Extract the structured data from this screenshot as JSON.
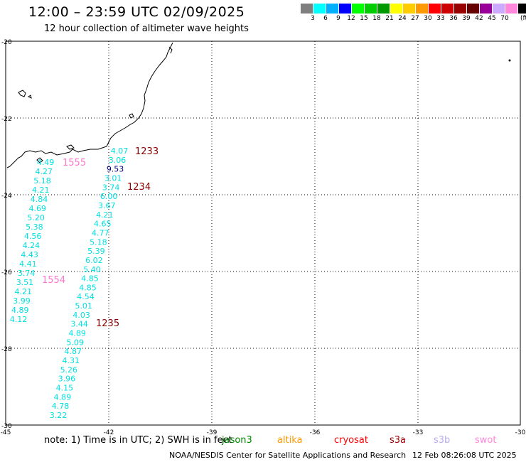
{
  "header": {
    "title": "12:00 – 23:59 UTC 02/09/2025",
    "subtitle": "12 hour collection of altimeter wave heights"
  },
  "legend": {
    "colors": [
      "#7f7f7f",
      "#00ffff",
      "#00b0ff",
      "#0000ff",
      "#00ff00",
      "#00cc00",
      "#009900",
      "#ffff00",
      "#ffcc00",
      "#ff9900",
      "#ff0000",
      "#cc0000",
      "#990000",
      "#660000",
      "#990099",
      "#ccaaff",
      "#ff88dd",
      "#000000"
    ],
    "labels": [
      "3",
      "6",
      "9",
      "12",
      "15",
      "18",
      "21",
      "24",
      "27",
      "30",
      "33",
      "36",
      "39",
      "42",
      "45",
      "70"
    ],
    "unit": "(ft)"
  },
  "map": {
    "lat_range": [
      -30,
      -20
    ],
    "lon_range": [
      -45,
      -30
    ],
    "lat_ticks": [
      "-20",
      "-22",
      "-24",
      "-26",
      "-28",
      "-30"
    ],
    "lon_ticks": [
      "-45",
      "-42",
      "-39",
      "-36",
      "-33",
      "-30"
    ],
    "track_color": "#00e0e0",
    "track1": [
      "4.49",
      "4.27",
      "5.18",
      "4.21",
      "4.84",
      "4.69",
      "5.20",
      "5.38",
      "4.56",
      "4.24",
      "4.43",
      "4.41",
      "3.74",
      "3.51",
      "4.21",
      "3.99",
      "4.89",
      "4.12"
    ],
    "track2": [
      "4.07",
      "3.06",
      "9.53",
      "3.01",
      "3.74",
      "6.00",
      "3.67",
      "4.21",
      "4.65",
      "4.77",
      "5.18",
      "5.39",
      "6.02",
      "5.40",
      "4.85",
      "4.85",
      "4.54",
      "5.01",
      "4.03",
      "3.44",
      "4.89",
      "5.09",
      "4.87",
      "4.31",
      "5.26",
      "3.96",
      "4.15",
      "4.89",
      "4.78",
      "3.22"
    ],
    "highlight_value": "9.53",
    "highlight_color": "#000080",
    "time_labels": [
      {
        "text": "1233",
        "color": "#880000"
      },
      {
        "text": "1555",
        "color": "#ff77cc"
      },
      {
        "text": "1234",
        "color": "#880000"
      },
      {
        "text": "1554",
        "color": "#ff77cc"
      },
      {
        "text": "1235",
        "color": "#880000"
      }
    ]
  },
  "footer": {
    "note": "note:  1) Time is in UTC;  2) SWH is in feet",
    "satellites": [
      {
        "name": "jason3",
        "color": "#008800"
      },
      {
        "name": "altika",
        "color": "#ff9900"
      },
      {
        "name": "cryosat",
        "color": "#ff0000"
      },
      {
        "name": "s3a",
        "color": "#990000"
      },
      {
        "name": "s3b",
        "color": "#bbaaee"
      },
      {
        "name": "swot",
        "color": "#ff88dd"
      }
    ],
    "credit": "NOAA/NESDIS Center for Satellite Applications and Research",
    "timestamp": "12 Feb 08:26:08 UTC 2025"
  }
}
